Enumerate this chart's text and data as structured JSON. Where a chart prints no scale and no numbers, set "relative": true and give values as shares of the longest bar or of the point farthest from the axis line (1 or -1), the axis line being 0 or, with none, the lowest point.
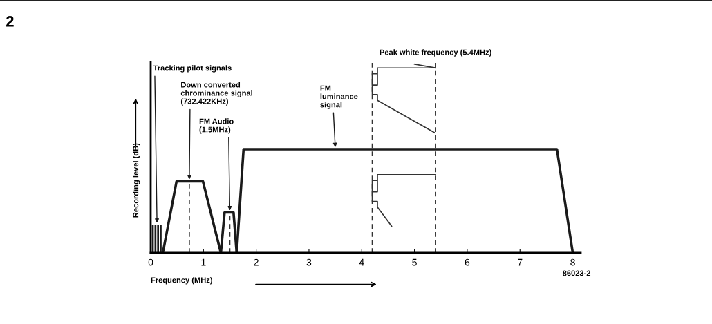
{
  "chart_data": {
    "type": "line",
    "relative": true,
    "xlabel": "Frequency (MHz)",
    "ylabel": "Recording level (dB)",
    "xlim": [
      0,
      8.15
    ],
    "xticks": [
      0,
      1,
      2,
      3,
      4,
      5,
      6,
      7,
      8
    ],
    "grid": false,
    "legend": false,
    "marker": "none",
    "line_style": "solid",
    "series": [
      {
        "type": "bar",
        "color": "#1a1a1a",
        "x": [
          0.04,
          0.09,
          0.14,
          0.19
        ],
        "values": [
          0.27,
          0.27,
          0.27,
          0.27
        ]
      },
      {
        "color": "#1a1a1a",
        "x": [
          0.23,
          0.49,
          0.99,
          1.33
        ],
        "values": [
          0,
          0.69,
          0.69,
          0
        ]
      },
      {
        "color": "#1a1a1a",
        "x": [
          1.33,
          1.4,
          1.57,
          1.63
        ],
        "values": [
          0,
          0.39,
          0.39,
          0
        ]
      },
      {
        "color": "#1a1a1a",
        "x": [
          1.63,
          1.76,
          7.7,
          8.0
        ],
        "values": [
          0,
          1,
          1,
          0
        ]
      }
    ],
    "ref_lines": [
      {
        "axis": "x",
        "value": 0.732,
        "line_style": "dashed",
        "color": "#333333"
      },
      {
        "axis": "x",
        "value": 1.5,
        "line_style": "dashed",
        "color": "#333333"
      },
      {
        "axis": "x",
        "value": 4.2,
        "line_style": "dashed",
        "color": "#333333"
      },
      {
        "axis": "x",
        "value": 5.4,
        "line_style": "dashed",
        "color": "#333333",
        "label": "Peak white frequency (5.4MHz)"
      }
    ],
    "annotations": [
      "2",
      {
        "text": "Tracking pilot signals",
        "x": 0.12,
        "y": 0.27
      },
      {
        "text": "Down converted\nchrominance signal\n(732.422KHz)",
        "x": 0.732,
        "y": 0.69
      },
      {
        "text": "FM Audio\n(1.5MHz)",
        "x": 1.5,
        "y": 0.39
      },
      {
        "text": "FM\nluminance\nsignal",
        "x": 3.5,
        "y": 1
      },
      "86023-2"
    ]
  }
}
